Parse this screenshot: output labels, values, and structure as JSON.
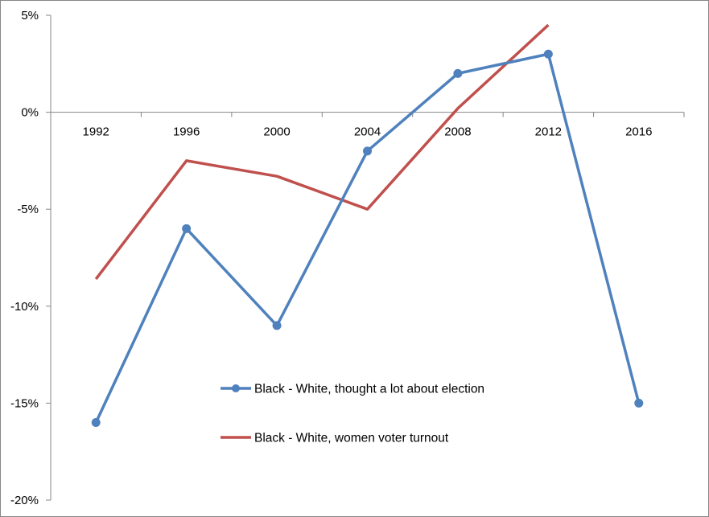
{
  "chart_data": {
    "type": "line",
    "title": "",
    "xlabel": "",
    "ylabel": "",
    "x": [
      "1992",
      "1996",
      "2000",
      "2004",
      "2008",
      "2012",
      "2016"
    ],
    "y_ticks": [
      "5%",
      "0%",
      "-5%",
      "-10%",
      "-15%",
      "-20%"
    ],
    "ylim": [
      -20,
      5
    ],
    "y_unit": "%",
    "grid": false,
    "legend_position": "center-bottom",
    "series": [
      {
        "name": "Black - White, thought a lot about election",
        "color": "#4F81BD",
        "marker": "circle",
        "values": [
          -16,
          -6,
          -11,
          -2,
          2,
          3,
          -15
        ]
      },
      {
        "name": "Black - White, women voter turnout",
        "color": "#C0504D",
        "marker": "none",
        "values": [
          -8.6,
          -2.5,
          -3.3,
          -5,
          0.2,
          4.5,
          null
        ]
      }
    ]
  }
}
